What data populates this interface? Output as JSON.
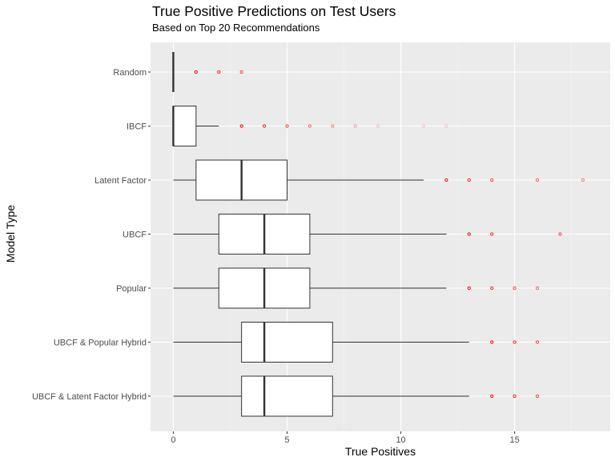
{
  "chart_data": {
    "type": "boxplot",
    "orientation": "horizontal",
    "title": "True Positive Predictions on Test Users",
    "subtitle": "Based on Top 20 Recommendations",
    "xlabel": "True Positives",
    "ylabel": "Model Type",
    "xlim": [
      -1,
      19.2
    ],
    "xticks": [
      0,
      5,
      10,
      15
    ],
    "grid": true,
    "outlier_color": "#ff0000",
    "categories": [
      "Random",
      "IBCF",
      "Latent Factor",
      "UBCF",
      "Popular",
      "UBCF & Popular Hybrid",
      "UBCF & Latent Factor Hybrid"
    ],
    "boxes": [
      {
        "name": "Random",
        "whisker_low": 0,
        "q1": 0,
        "median": 0,
        "q3": 0,
        "whisker_high": 0,
        "outliers": [
          1,
          2,
          3
        ]
      },
      {
        "name": "IBCF",
        "whisker_low": 0,
        "q1": 0,
        "median": 0,
        "q3": 1,
        "whisker_high": 2,
        "outliers": [
          3,
          4,
          5,
          6,
          7,
          8,
          9,
          11,
          12
        ]
      },
      {
        "name": "Latent Factor",
        "whisker_low": 0,
        "q1": 1,
        "median": 3,
        "q3": 5,
        "whisker_high": 11,
        "outliers": [
          12,
          13,
          14,
          16,
          18
        ]
      },
      {
        "name": "UBCF",
        "whisker_low": 0,
        "q1": 2,
        "median": 4,
        "q3": 6,
        "whisker_high": 12,
        "outliers": [
          13,
          14,
          17
        ]
      },
      {
        "name": "Popular",
        "whisker_low": 0,
        "q1": 2,
        "median": 4,
        "q3": 6,
        "whisker_high": 12,
        "outliers": [
          13,
          14,
          15,
          16
        ]
      },
      {
        "name": "UBCF & Popular Hybrid",
        "whisker_low": 0,
        "q1": 3,
        "median": 4,
        "q3": 7,
        "whisker_high": 13,
        "outliers": [
          14,
          15,
          16
        ]
      },
      {
        "name": "UBCF & Latent Factor Hybrid",
        "whisker_low": 0,
        "q1": 3,
        "median": 4,
        "q3": 7,
        "whisker_high": 13,
        "outliers": [
          14,
          15,
          16
        ]
      }
    ]
  }
}
